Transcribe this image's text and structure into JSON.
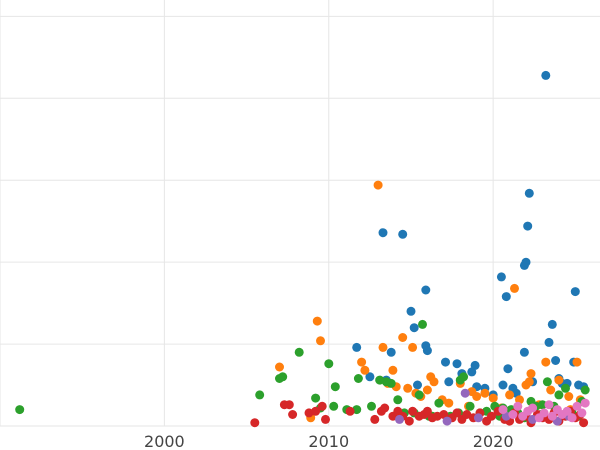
{
  "chart_data": {
    "type": "scatter",
    "title": "",
    "xlabel": "",
    "ylabel": "",
    "xlim": [
      1990,
      2026.5
    ],
    "ylim": [
      0,
      26
    ],
    "x_ticks": [
      {
        "value": 2000,
        "label": "2000"
      },
      {
        "value": 2010,
        "label": "2010"
      },
      {
        "value": 2020,
        "label": "2020"
      }
    ],
    "x_grid": [
      1990,
      2000,
      2010,
      2020
    ],
    "y_grid": [
      0,
      5,
      10,
      15,
      20,
      25
    ],
    "grid": true,
    "legend": "none",
    "series": [
      {
        "color": "#1f77b4",
        "x": [
          2011.7,
          2012.5,
          2013.3,
          2013.5,
          2013.8,
          2014.5,
          2015.0,
          2015.2,
          2015.4,
          2015.9,
          2015.9,
          2016.0,
          2017.1,
          2017.3,
          2017.8,
          2018.1,
          2018.7,
          2018.9,
          2019.0,
          2019.5,
          2020.0,
          2020.5,
          2020.6,
          2020.8,
          2020.9,
          2021.2,
          2021.4,
          2021.9,
          2021.9,
          2022.0,
          2022.1,
          2022.2,
          2022.4,
          2023.2,
          2023.4,
          2023.6,
          2023.8,
          2024.0,
          2024.2,
          2024.5,
          2024.9,
          2025.0,
          2025.2,
          2025.5
        ],
        "y": [
          4.8,
          3.0,
          11.8,
          2.8,
          4.5,
          11.7,
          7.0,
          6.0,
          2.5,
          8.3,
          4.9,
          4.6,
          3.9,
          2.7,
          3.8,
          3.2,
          3.3,
          3.7,
          2.4,
          2.3,
          1.9,
          9.1,
          2.5,
          7.9,
          3.5,
          2.3,
          2.0,
          4.5,
          9.8,
          10.0,
          12.2,
          14.2,
          2.7,
          21.4,
          5.1,
          6.2,
          4.0,
          2.9,
          2.6,
          2.6,
          3.9,
          8.2,
          2.5,
          2.4
        ]
      },
      {
        "color": "#ff7f0e",
        "x": [
          2007.0,
          2008.9,
          2009.3,
          2009.5,
          2012.0,
          2012.2,
          2013.0,
          2013.3,
          2013.6,
          2013.9,
          2014.1,
          2014.5,
          2014.8,
          2015.1,
          2015.3,
          2015.6,
          2016.0,
          2016.2,
          2016.4,
          2016.9,
          2017.3,
          2018.0,
          2018.5,
          2018.7,
          2019.0,
          2019.5,
          2020.0,
          2020.5,
          2021.0,
          2021.3,
          2021.6,
          2022.0,
          2022.2,
          2022.3,
          2022.8,
          2023.2,
          2023.5,
          2024.0,
          2024.6,
          2024.7,
          2025.1,
          2025.3
        ],
        "y": [
          3.6,
          0.5,
          6.4,
          5.2,
          3.9,
          3.4,
          14.7,
          4.8,
          2.6,
          3.4,
          2.4,
          5.4,
          2.3,
          4.8,
          2.0,
          1.8,
          2.2,
          3.0,
          2.7,
          1.6,
          1.4,
          2.6,
          1.2,
          2.1,
          1.8,
          2.0,
          1.7,
          1.1,
          1.9,
          8.4,
          1.6,
          2.5,
          2.7,
          3.2,
          1.3,
          3.9,
          2.2,
          2.8,
          1.8,
          1.0,
          3.9,
          1.6
        ]
      },
      {
        "color": "#2ca02c",
        "x": [
          1991.2,
          2005.8,
          2007.0,
          2007.2,
          2008.2,
          2009.2,
          2009.5,
          2010.0,
          2010.3,
          2010.4,
          2011.1,
          2011.7,
          2011.8,
          2012.6,
          2013.1,
          2013.5,
          2013.8,
          2014.2,
          2014.6,
          2015.2,
          2015.5,
          2015.7,
          2016.1,
          2016.3,
          2016.7,
          2017.4,
          2017.9,
          2018.0,
          2018.2,
          2018.6,
          2019.2,
          2019.6,
          2020.1,
          2020.4,
          2020.6,
          2021.1,
          2021.5,
          2021.9,
          2022.3,
          2022.6,
          2022.9,
          2023.0,
          2023.3,
          2023.7,
          2024.0,
          2024.4,
          2024.8,
          2025.2,
          2025.4,
          2025.6
        ],
        "y": [
          1.0,
          1.9,
          2.9,
          3.0,
          4.5,
          1.7,
          1.1,
          3.8,
          1.2,
          2.4,
          1.0,
          1.0,
          2.9,
          1.2,
          2.8,
          2.7,
          2.6,
          1.6,
          0.8,
          0.8,
          1.9,
          6.2,
          0.6,
          0.6,
          1.4,
          0.6,
          0.8,
          2.8,
          3.0,
          1.2,
          0.8,
          0.9,
          1.2,
          0.6,
          1.1,
          1.0,
          0.8,
          0.5,
          1.5,
          1.2,
          0.7,
          1.3,
          2.7,
          1.2,
          1.9,
          2.3,
          0.8,
          0.6,
          1.5,
          2.2
        ]
      },
      {
        "color": "#d62728",
        "x": [
          2005.5,
          2007.3,
          2007.6,
          2007.8,
          2008.8,
          2009.2,
          2009.6,
          2009.8,
          2011.3,
          2012.8,
          2013.2,
          2013.4,
          2013.9,
          2014.2,
          2014.5,
          2014.9,
          2015.1,
          2015.5,
          2015.8,
          2016.0,
          2016.3,
          2016.6,
          2017.0,
          2017.5,
          2017.8,
          2018.1,
          2018.4,
          2018.8,
          2019.2,
          2019.6,
          2019.9,
          2020.3,
          2020.7,
          2021.0,
          2021.3,
          2021.6,
          2022.0,
          2022.3,
          2022.7,
          2023.0,
          2023.4,
          2023.7,
          2024.0,
          2024.4,
          2024.7,
          2025.0,
          2025.3,
          2025.5
        ],
        "y": [
          0.2,
          1.3,
          1.3,
          0.7,
          0.8,
          0.9,
          1.2,
          0.4,
          0.9,
          0.4,
          0.9,
          1.1,
          0.6,
          0.9,
          0.6,
          0.3,
          0.9,
          0.6,
          0.7,
          0.9,
          0.5,
          0.6,
          0.7,
          0.5,
          0.8,
          0.4,
          0.7,
          0.5,
          0.8,
          0.3,
          0.6,
          0.9,
          0.4,
          0.3,
          0.8,
          0.4,
          0.6,
          0.2,
          0.7,
          0.5,
          0.4,
          0.8,
          0.3,
          0.6,
          0.9,
          0.5,
          0.7,
          0.2
        ]
      },
      {
        "color": "#9467bd",
        "x": [
          2014.3,
          2017.2,
          2018.3,
          2019.1,
          2020.8,
          2022.4,
          2023.9,
          2024.6
        ],
        "y": [
          0.4,
          0.3,
          2.0,
          0.5,
          0.6,
          0.4,
          0.3,
          0.6
        ]
      },
      {
        "color": "#e377c2",
        "x": [
          2020.6,
          2021.2,
          2021.5,
          2021.8,
          2022.1,
          2022.4,
          2022.8,
          2023.1,
          2023.4,
          2023.6,
          2023.9,
          2024.2,
          2024.5,
          2024.8,
          2025.1,
          2025.4,
          2025.6
        ],
        "y": [
          1.0,
          0.7,
          1.2,
          0.6,
          0.9,
          1.1,
          0.5,
          0.8,
          1.3,
          0.6,
          1.0,
          0.7,
          0.9,
          0.5,
          1.2,
          0.8,
          1.4
        ]
      }
    ]
  }
}
